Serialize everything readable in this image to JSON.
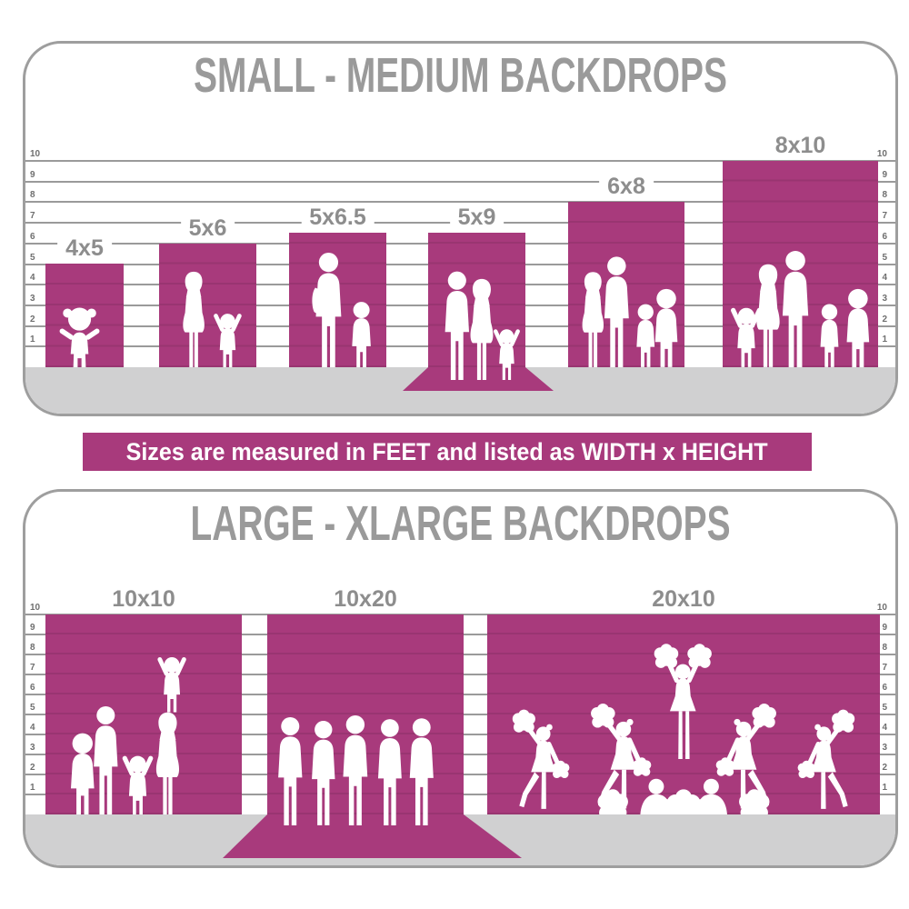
{
  "banner": {
    "text": "Sizes are measured in FEET and listed as WIDTH x HEIGHT"
  },
  "colors": {
    "magenta": "#a83a7c",
    "floor": "#d0d0d1",
    "gridline": "#9a9a9a",
    "panel_border": "#9e9e9e",
    "title_gray": "#9a9a9a",
    "label_gray": "#8d8d8d",
    "tick_gray": "#6f6f6f",
    "silhouette": "#ffffff",
    "banner_text": "#ffffff"
  },
  "chart_data": [
    {
      "type": "bar",
      "title": "SMALL - MEDIUM BACKDROPS",
      "unit": "feet",
      "size_format": "WIDTH x HEIGHT",
      "axis": {
        "ticks": [
          1,
          2,
          3,
          4,
          5,
          6,
          7,
          8,
          9,
          10
        ],
        "range_ft": [
          0,
          10
        ],
        "sides": [
          "left",
          "right"
        ],
        "grid": true
      },
      "bars": [
        {
          "label": "4x5",
          "width_ft": 4,
          "height_ft": 5,
          "drawn_height_ft": 5,
          "floor_sweep": false,
          "silhouette": "toddler-girl"
        },
        {
          "label": "5x6",
          "width_ft": 5,
          "height_ft": 6,
          "drawn_height_ft": 6,
          "floor_sweep": false,
          "silhouette": "mother-and-child"
        },
        {
          "label": "5x6.5",
          "width_ft": 5,
          "height_ft": 6.5,
          "drawn_height_ft": 6.5,
          "floor_sweep": false,
          "silhouette": "man-and-boy"
        },
        {
          "label": "5x9",
          "width_ft": 5,
          "height_ft": 9,
          "drawn_height_ft": 6.5,
          "floor_sweep": true,
          "silhouette": "couple-and-child"
        },
        {
          "label": "6x8",
          "width_ft": 6,
          "height_ft": 8,
          "drawn_height_ft": 8,
          "floor_sweep": false,
          "silhouette": "family-of-four"
        },
        {
          "label": "8x10",
          "width_ft": 8,
          "height_ft": 10,
          "drawn_height_ft": 10,
          "floor_sweep": false,
          "silhouette": "family-of-five"
        }
      ]
    },
    {
      "type": "bar",
      "title": "LARGE - XLARGE BACKDROPS",
      "unit": "feet",
      "size_format": "WIDTH x HEIGHT",
      "axis": {
        "ticks": [
          1,
          2,
          3,
          4,
          5,
          6,
          7,
          8,
          9,
          10
        ],
        "range_ft": [
          0,
          10
        ],
        "sides": [
          "left",
          "right"
        ],
        "grid": true
      },
      "bars": [
        {
          "label": "10x10",
          "width_ft": 10,
          "height_ft": 10,
          "drawn_height_ft": 10,
          "floor_sweep": false,
          "silhouette": "family-with-child-on-shoulders"
        },
        {
          "label": "10x20",
          "width_ft": 10,
          "height_ft": 20,
          "drawn_height_ft": 10,
          "floor_sweep": true,
          "silhouette": "group-of-friends"
        },
        {
          "label": "20x10",
          "width_ft": 20,
          "height_ft": 10,
          "drawn_height_ft": 10,
          "floor_sweep": false,
          "silhouette": "cheerleader-squad"
        }
      ]
    }
  ]
}
